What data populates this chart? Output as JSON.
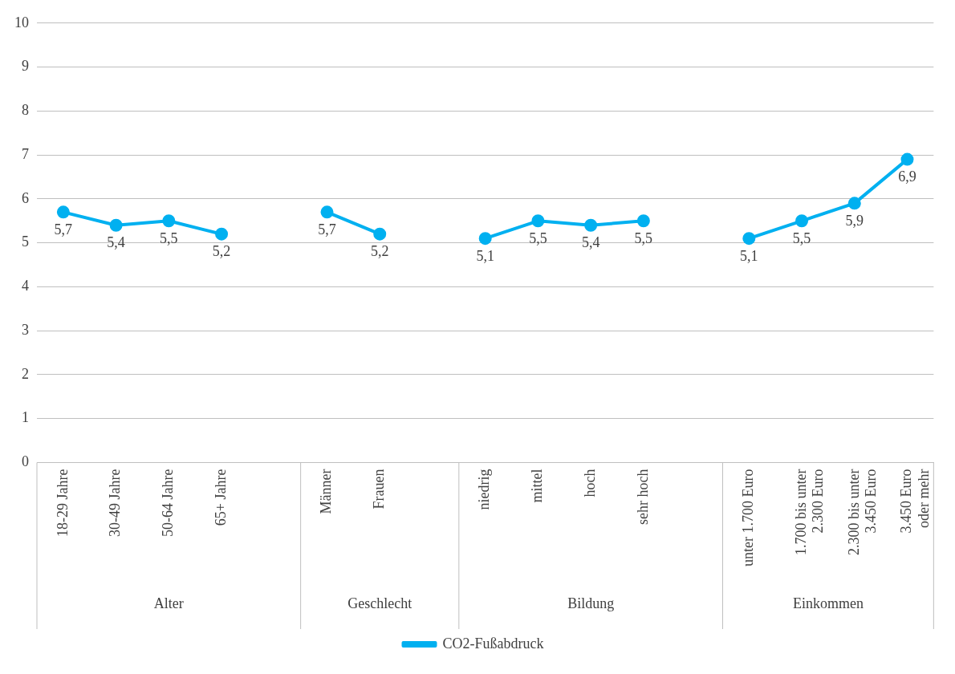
{
  "chart_data": {
    "type": "line",
    "categories": [
      "18-29 Jahre",
      "30-49 Jahre",
      "50-64 Jahre",
      "65+ Jahre",
      null,
      "Männer",
      "Frauen",
      null,
      "niedrig",
      "mittel",
      "hoch",
      "sehr hoch",
      null,
      "unter 1.700 Euro",
      "1.700 bis unter 2.300 Euro",
      "2.300 bis unter 3.450 Euro",
      "3.450 Euro oder mehr"
    ],
    "series": [
      {
        "name": "CO2-Fußabdruck",
        "color": "#00b0f0",
        "values": [
          5.7,
          5.4,
          5.5,
          5.2,
          null,
          5.7,
          5.2,
          null,
          5.1,
          5.5,
          5.4,
          5.5,
          null,
          5.1,
          5.5,
          5.9,
          6.9
        ],
        "value_labels": [
          "5,7",
          "5,4",
          "5,5",
          "5,2",
          null,
          "5,7",
          "5,2",
          null,
          "5,1",
          "5,5",
          "5,4",
          "5,5",
          null,
          "5,1",
          "5,5",
          "5,9",
          "6,9"
        ]
      }
    ],
    "annotations": [
      "Alter",
      "Geschlecht",
      "Bildung",
      "Einkommen"
    ],
    "ylim": [
      0,
      10
    ],
    "yticks": [
      0,
      1,
      2,
      3,
      4,
      5,
      6,
      7,
      8,
      9,
      10
    ],
    "grid": "y",
    "legend": "bottom",
    "marker": "circle"
  }
}
